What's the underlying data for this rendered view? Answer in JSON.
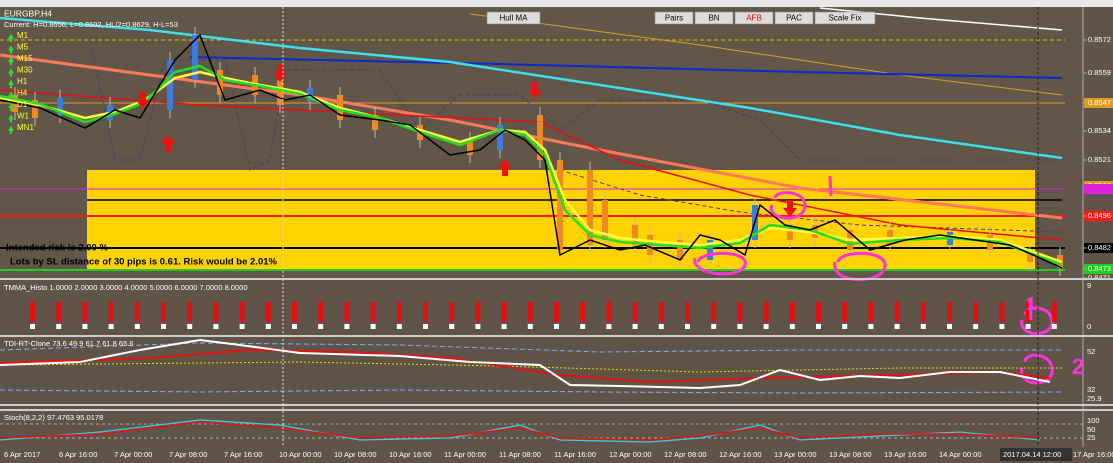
{
  "symbol": "EURGBP,H4",
  "info": "Current: H=0.8656, L=0.8602, HL/2=0.8629, H-L=53",
  "timeframes": [
    "M1",
    "M5",
    "M15",
    "M30",
    "H1",
    "H4",
    "D1",
    "W1",
    "MN1"
  ],
  "buttons": [
    "Hull MA",
    "Pairs",
    "BN",
    "AFB",
    "PAC",
    "Scale Fix"
  ],
  "price_labels": [
    "0.8572",
    "0.8559",
    "0.8547",
    "0.8534",
    "0.8521",
    "0.8510",
    "0.8496",
    "0.8482",
    "0.8473",
    "0.8471"
  ],
  "risk": {
    "intended": "Intended risk is 2.00 %",
    "lots": "Lots by SL distance of 30 pips is 0.61. Risk would be 2.01%"
  },
  "histo": {
    "title": "TMMA_Histo 1.0000 2.0000 3.0000 4.0000 5.0000 6.0000 7.0000 8.0000",
    "axis": [
      "9",
      "0"
    ]
  },
  "tdi": {
    "title": "TDI-RT-Clone 73.6 49.9 61.7 61.8 65.6",
    "axis": [
      "52",
      "32",
      "25.9"
    ]
  },
  "stoch": {
    "title": "Stoch(8,2,2) 97.4763 95.0178",
    "axis": [
      "100",
      "50",
      "25"
    ]
  },
  "time_labels": [
    "6 Apr 2017",
    "6 Apr 16:00",
    "7 Apr 00:00",
    "7 Apr 08:00",
    "7 Apr 16:00",
    "10 Apr 00:00",
    "10 Apr 08:00",
    "10 Apr 16:00",
    "11 Apr 00:00",
    "11 Apr 08:00",
    "11 Apr 16:00",
    "12 Apr 00:00",
    "12 Apr 08:00",
    "12 Apr 16:00",
    "13 Apr 00:00",
    "13 Apr 08:00",
    "13 Apr 16:00",
    "14 Apr 00:00",
    "14 Apr 08:00",
    "2017.04.14 12:00",
    "17 Apr 16:00"
  ],
  "annotations": [
    "1",
    "2"
  ]
}
